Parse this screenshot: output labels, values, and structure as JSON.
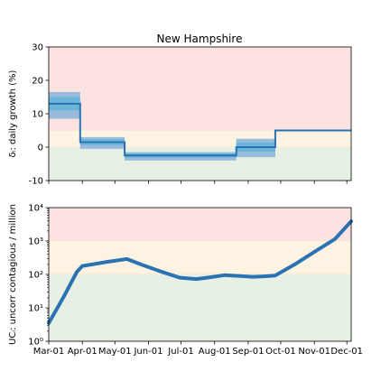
{
  "colors": {
    "red_zone": "#fde2e2",
    "orange_zone": "#fdf3e3",
    "green_zone": "#e6f0e5",
    "line": "#2b72b2",
    "band_light": "#8fb6dc",
    "band_dark": "#62b4d9",
    "frame": "#000000"
  },
  "chart_data": [
    {
      "type": "line",
      "title": "New Hampshire",
      "ylabel": "δᵢ: daily growth (%)",
      "ylim": [
        -10,
        30
      ],
      "yticks": [
        -10,
        0,
        10,
        20,
        30
      ],
      "xlim": [
        "2020-03-01",
        "2020-12-05"
      ],
      "xticks": [
        "2020-03-01",
        "2020-04-01",
        "2020-05-01",
        "2020-06-01",
        "2020-07-01",
        "2020-08-01",
        "2020-09-01",
        "2020-10-01",
        "2020-11-01",
        "2020-12-01"
      ],
      "zones": [
        {
          "name": "red",
          "from": 5,
          "to": 30
        },
        {
          "name": "orange",
          "from": 0,
          "to": 5
        },
        {
          "name": "green",
          "from": -10,
          "to": 0
        }
      ],
      "segments": [
        {
          "start": "2020-03-01",
          "end": "2020-03-30",
          "value": 13.0,
          "lo": 8.5,
          "hi": 16.5
        },
        {
          "start": "2020-03-30",
          "end": "2020-05-10",
          "value": 1.5,
          "lo": -0.5,
          "hi": 3.0
        },
        {
          "start": "2020-05-10",
          "end": "2020-08-21",
          "value": -2.5,
          "lo": -4.0,
          "hi": -1.5
        },
        {
          "start": "2020-08-21",
          "end": "2020-09-26",
          "value": 0.0,
          "lo": -3.0,
          "hi": 2.5
        },
        {
          "start": "2020-09-26",
          "end": "2020-12-05",
          "value": 5.0,
          "lo": 5.0,
          "hi": 5.0
        }
      ]
    },
    {
      "type": "line",
      "scale": "log",
      "ylabel": "UCᵢ: uncorr contagious / million",
      "ylim": [
        1,
        10000
      ],
      "yticks": [
        "10⁰",
        "10¹",
        "10²",
        "10³",
        "10⁴"
      ],
      "xlim": [
        "2020-03-01",
        "2020-12-05"
      ],
      "xtick_labels": [
        "Mar-01",
        "Apr-01",
        "May-01",
        "Jun-01",
        "Jul-01",
        "Aug-01",
        "Sep-01",
        "Oct-01",
        "Nov-01",
        "Dec-01"
      ],
      "zones": [
        {
          "name": "red",
          "from": 1000,
          "to": 10000
        },
        {
          "name": "orange",
          "from": 100,
          "to": 1000
        },
        {
          "name": "green",
          "from": 1,
          "to": 100
        }
      ],
      "series": [
        {
          "x": [
            "2020-03-01",
            "2020-03-15",
            "2020-03-27",
            "2020-04-01",
            "2020-04-10",
            "2020-04-25",
            "2020-05-12",
            "2020-05-25",
            "2020-06-10",
            "2020-06-30",
            "2020-07-15",
            "2020-07-25",
            "2020-08-10",
            "2020-08-25",
            "2020-09-05",
            "2020-09-15",
            "2020-09-26",
            "2020-10-15",
            "2020-11-01",
            "2020-11-20",
            "2020-12-05"
          ],
          "y": [
            3.5,
            22,
            120,
            180,
            200,
            240,
            290,
            200,
            130,
            80,
            73,
            80,
            95,
            90,
            85,
            88,
            93,
            210,
            470,
            1150,
            3900
          ]
        }
      ]
    }
  ]
}
